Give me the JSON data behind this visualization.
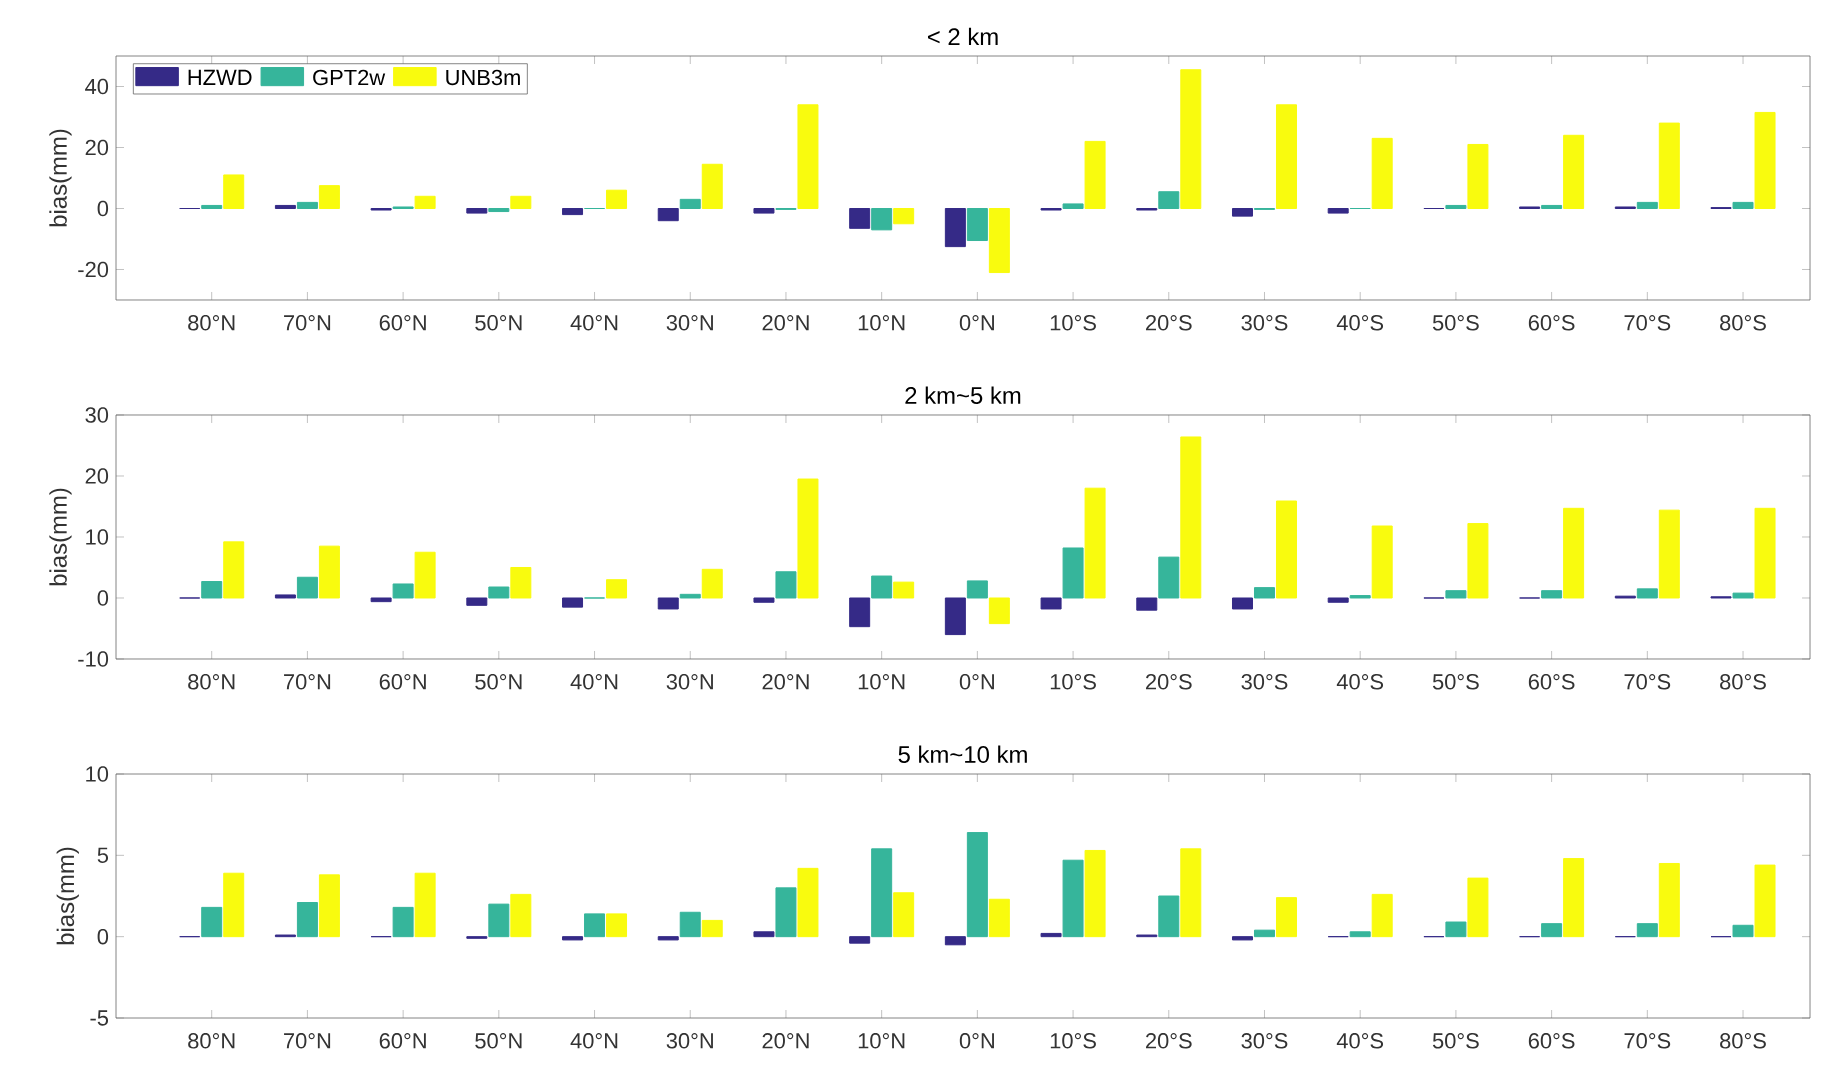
{
  "chart_data": [
    {
      "type": "bar",
      "title": "< 2 km",
      "ylabel": "bias(mm)",
      "categories": [
        "80°N",
        "70°N",
        "60°N",
        "50°N",
        "40°N",
        "30°N",
        "20°N",
        "10°N",
        "0°N",
        "10°S",
        "20°S",
        "30°S",
        "40°S",
        "50°S",
        "60°S",
        "70°S",
        "80°S"
      ],
      "ylim": [
        -30,
        50
      ],
      "yticks": [
        -20,
        0,
        20,
        40
      ],
      "legend": "top left",
      "series": [
        {
          "name": "HZWD",
          "color": "#352a87",
          "values": [
            0,
            1,
            -0.5,
            -1.5,
            -2,
            -4,
            -1.5,
            -6.5,
            -12.5,
            -0.5,
            -0.5,
            -2.5,
            -1.5,
            0,
            0.5,
            0.5,
            0.3
          ]
        },
        {
          "name": "GPT2w",
          "color": "#36b59b",
          "values": [
            1,
            2,
            0.5,
            -1,
            0,
            3,
            -0.3,
            -7,
            -10.5,
            1.5,
            5.5,
            -0.3,
            0,
            1,
            1,
            2,
            2
          ]
        },
        {
          "name": "UNB3m",
          "color": "#f9fb0e",
          "values": [
            11,
            7.5,
            4,
            4,
            6,
            14.5,
            34,
            -5,
            -21,
            22,
            45.5,
            34,
            23,
            21,
            24,
            28,
            31.5
          ]
        }
      ]
    },
    {
      "type": "bar",
      "title": "2 km~5 km",
      "ylabel": "bias(mm)",
      "categories": [
        "80°N",
        "70°N",
        "60°N",
        "50°N",
        "40°N",
        "30°N",
        "20°N",
        "10°N",
        "0°N",
        "10°S",
        "20°S",
        "30°S",
        "40°S",
        "50°S",
        "60°S",
        "70°S",
        "80°S"
      ],
      "ylim": [
        -10,
        30
      ],
      "yticks": [
        -10,
        0,
        10,
        20,
        30
      ],
      "series": [
        {
          "color": "#352a87",
          "values": [
            0,
            0.5,
            -0.6,
            -1.2,
            -1.5,
            -1.8,
            -0.7,
            -4.7,
            -6,
            -1.8,
            -2,
            -1.8,
            -0.7,
            0,
            0,
            0.3,
            0.2
          ]
        },
        {
          "color": "#36b59b",
          "values": [
            2.7,
            3.4,
            2.3,
            1.8,
            0,
            0.6,
            4.3,
            3.6,
            2.8,
            8.2,
            6.7,
            1.7,
            0.4,
            1.2,
            1.2,
            1.5,
            0.8
          ]
        },
        {
          "color": "#f9fb0e",
          "values": [
            9.2,
            8.5,
            7.5,
            5,
            3,
            4.7,
            19.5,
            2.6,
            -4.2,
            18,
            26.4,
            15.9,
            11.8,
            12.2,
            14.7,
            14.4,
            14.7
          ]
        }
      ]
    },
    {
      "type": "bar",
      "title": "5 km~10 km",
      "ylabel": "bias(mm)",
      "categories": [
        "80°N",
        "70°N",
        "60°N",
        "50°N",
        "40°N",
        "30°N",
        "20°N",
        "10°N",
        "0°N",
        "10°S",
        "20°S",
        "30°S",
        "40°S",
        "50°S",
        "60°S",
        "70°S",
        "80°S"
      ],
      "ylim": [
        -5,
        10
      ],
      "yticks": [
        -5,
        0,
        5,
        10
      ],
      "series": [
        {
          "color": "#352a87",
          "values": [
            0,
            0.1,
            0,
            -0.1,
            -0.2,
            -0.2,
            0.3,
            -0.4,
            -0.5,
            0.2,
            0.1,
            -0.2,
            0,
            0,
            0,
            0,
            0
          ]
        },
        {
          "color": "#36b59b",
          "values": [
            1.8,
            2.1,
            1.8,
            2.0,
            1.4,
            1.5,
            3.0,
            5.4,
            6.4,
            4.7,
            2.5,
            0.4,
            0.3,
            0.9,
            0.8,
            0.8,
            0.7
          ]
        },
        {
          "color": "#f9fb0e",
          "values": [
            3.9,
            3.8,
            3.9,
            2.6,
            1.4,
            1.0,
            4.2,
            2.7,
            2.3,
            5.3,
            5.4,
            2.4,
            2.6,
            3.6,
            4.8,
            4.5,
            4.4
          ]
        }
      ]
    }
  ]
}
